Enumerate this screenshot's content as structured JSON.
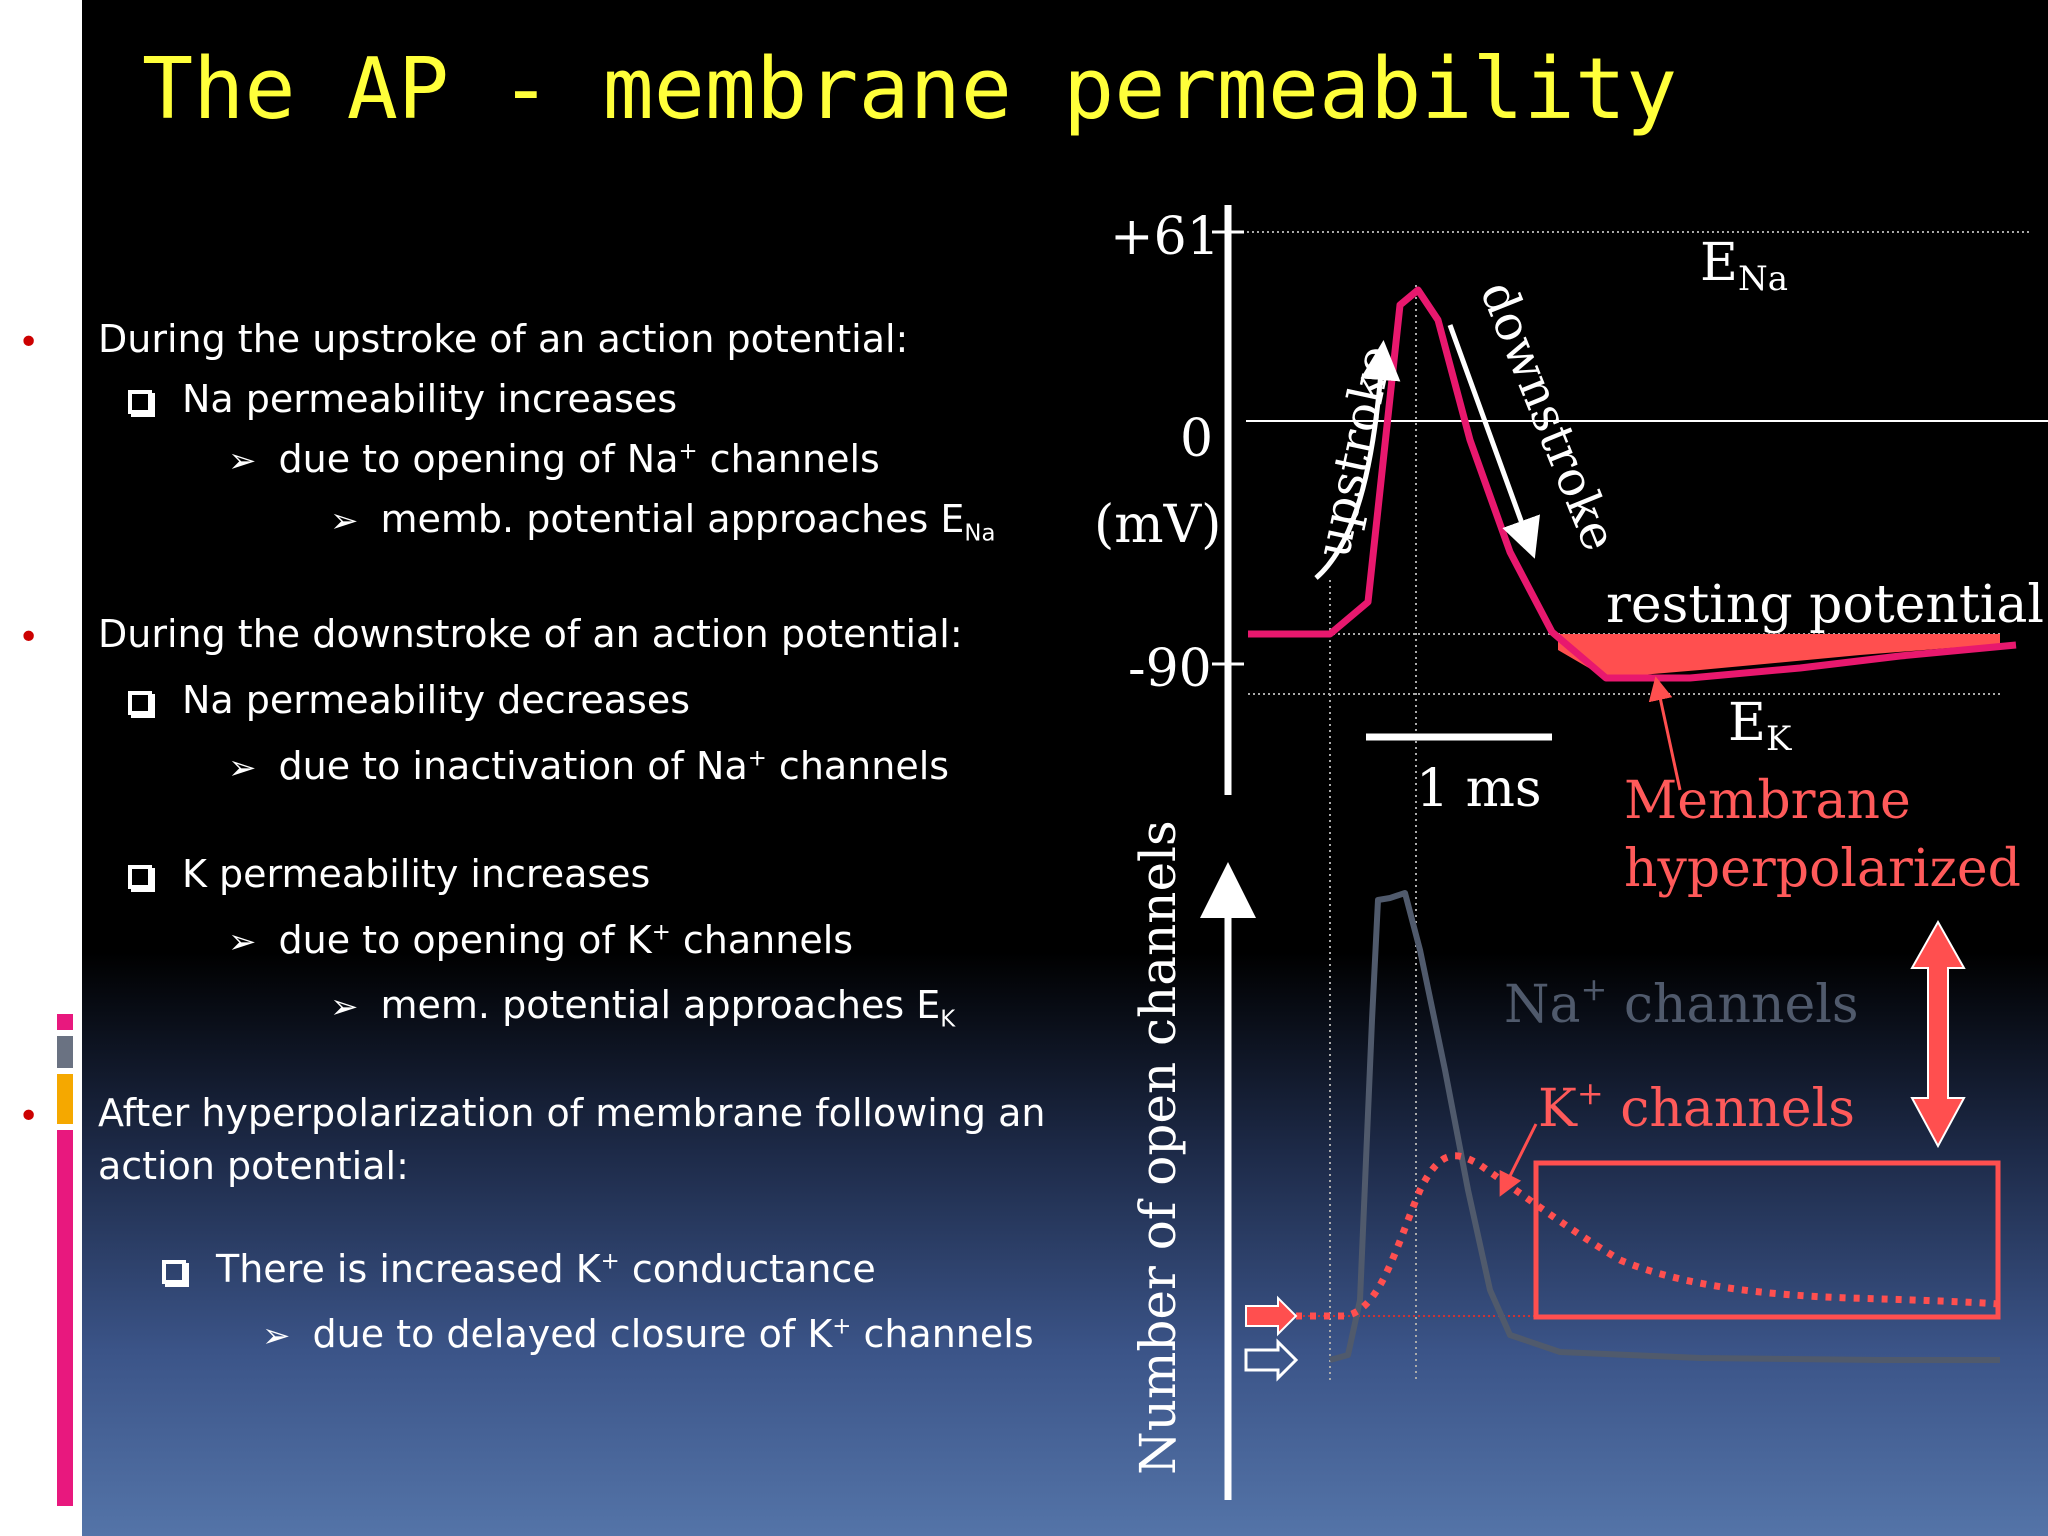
{
  "title": "The AP - membrane permeability",
  "bullets": {
    "b1": "During the upstroke of an action potential:",
    "b1_s1": "Na permeability increases",
    "b1_s1_a": "due to opening of Na",
    "b1_s1_a_sup": "+",
    "b1_s1_a_end": " channels",
    "b1_s1_a_a": "memb. potential approaches E",
    "b1_s1_a_a_sub": "Na",
    "b2": "During the  downstroke of an action potential:",
    "b2_s1": "Na permeability decreases",
    "b2_s1_a": "due to inactivation of Na",
    "b2_s1_a_sup": "+",
    "b2_s1_a_end": " channels",
    "b2_s2": "K permeability increases",
    "b2_s2_a": "due to opening of K",
    "b2_s2_a_sup": "+",
    "b2_s2_a_end": " channels",
    "b2_s2_a_a": "mem. potential approaches E",
    "b2_s2_a_a_sub": "K",
    "b3_l1": "After hyperpolarization of membrane following an",
    "b3_l2": "action potential:",
    "b3_s1": "There is increased K",
    "b3_s1_sup": "+",
    "b3_s1_end": " conductance",
    "b3_s1_a": "due to delayed closure of K",
    "b3_s1_a_sup": "+",
    "b3_s1_a_end": " channels"
  },
  "diagram": {
    "y_top": "+61",
    "y_zero": "0",
    "y_unit": "(mV)",
    "y_bottom": "-90",
    "ena": "E",
    "ena_sub": "Na",
    "ek": "E",
    "ek_sub": "K",
    "upstroke": "upstroke",
    "downstroke": "downstroke",
    "resting": "resting potential",
    "scale": "1 ms",
    "hyper1": "Membrane",
    "hyper2": "hyperpolarized",
    "y2_label": "Number of open channels",
    "na_ch": "Na",
    "na_ch_sup": "+",
    "na_ch_end": " channels",
    "k_ch": "K",
    "k_ch_sup": "+",
    "k_ch_end": " channels"
  },
  "colors": {
    "title": "#ffff3a",
    "ap_trace": "#e8186e",
    "hyper": "#ff4f4f",
    "na_trace": "#505a6c",
    "bullet": "#cc0000"
  }
}
